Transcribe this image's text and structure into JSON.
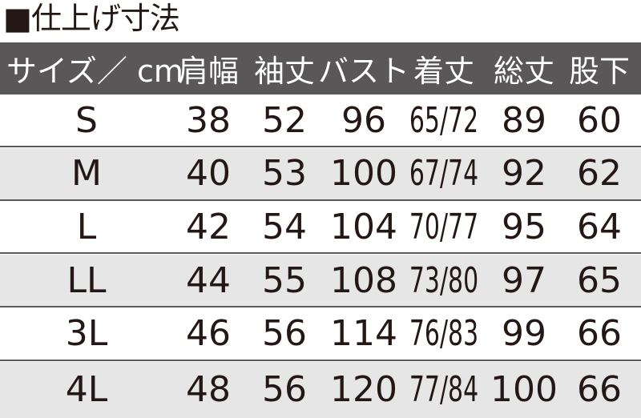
{
  "title": "■仕上げ寸法",
  "header": [
    "サイズ／ cm",
    "肩幅",
    "袖丈",
    "バスト",
    "着丈",
    "総丈",
    "股下"
  ],
  "rows": [
    [
      "S",
      "38",
      "52",
      "96",
      "65/72",
      "89",
      "60"
    ],
    [
      "M",
      "40",
      "53",
      "100",
      "67/74",
      "92",
      "62"
    ],
    [
      "L",
      "42",
      "54",
      "104",
      "70/77",
      "95",
      "64"
    ],
    [
      "LL",
      "44",
      "55",
      "108",
      "73/80",
      "97",
      "65"
    ],
    [
      "3L",
      "46",
      "56",
      "114",
      "76/83",
      "99",
      "66"
    ],
    [
      "4L",
      "48",
      "56",
      "120",
      "77/84",
      "100",
      "66"
    ]
  ],
  "colors": {
    "header_bg": "#595757",
    "alt_row_bg": "#e6e6e6",
    "text": "#231815"
  }
}
